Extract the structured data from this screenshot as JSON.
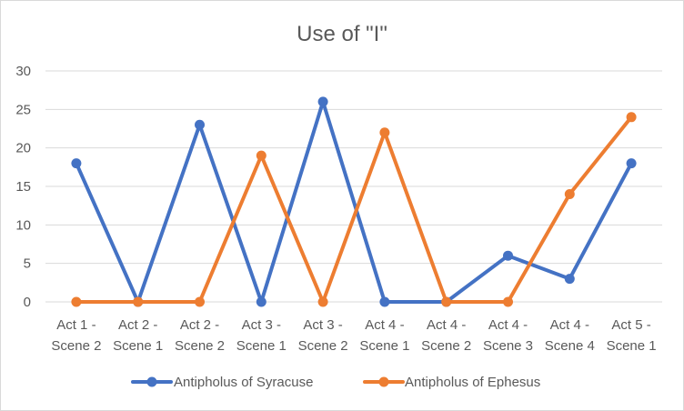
{
  "chart_data": {
    "type": "line",
    "title": "Use of \"I\"",
    "categories": [
      [
        "Act 1 -",
        "Scene 2"
      ],
      [
        "Act 2 -",
        "Scene 1"
      ],
      [
        "Act 2 -",
        "Scene 2"
      ],
      [
        "Act 3 -",
        "Scene 1"
      ],
      [
        "Act 3 -",
        "Scene 2"
      ],
      [
        "Act 4 -",
        "Scene 1"
      ],
      [
        "Act 4 -",
        "Scene 2"
      ],
      [
        "Act 4 -",
        "Scene 3"
      ],
      [
        "Act 4 -",
        "Scene 4"
      ],
      [
        "Act 5 -",
        "Scene 1"
      ]
    ],
    "ylim": [
      0,
      30
    ],
    "yticks": [
      0,
      5,
      10,
      15,
      20,
      25,
      30
    ],
    "grid": true,
    "legend_position": "bottom",
    "series": [
      {
        "name": "Antipholus of Syracuse",
        "color": "#4472c4",
        "values": [
          18,
          0,
          23,
          0,
          26,
          0,
          0,
          6,
          3,
          18
        ]
      },
      {
        "name": "Antipholus of Ephesus",
        "color": "#ed7d31",
        "values": [
          0,
          0,
          0,
          19,
          0,
          22,
          0,
          0,
          14,
          24
        ]
      }
    ]
  }
}
